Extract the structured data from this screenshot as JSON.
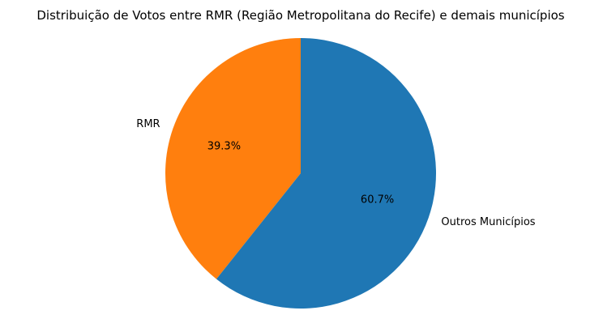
{
  "chart_data": {
    "type": "pie",
    "title": "Distribuição de Votos entre RMR (Região Metropolitana do Recife) e demais municípios",
    "categories": [
      "RMR",
      "Outros Municípios"
    ],
    "values": [
      39.3,
      60.7
    ],
    "percent_labels": [
      "39.3%",
      "60.7%"
    ],
    "colors": [
      "#ff7f0e",
      "#1f77b4"
    ],
    "start_angle_deg": 90,
    "direction": "counterclockwise",
    "legend": "none"
  }
}
